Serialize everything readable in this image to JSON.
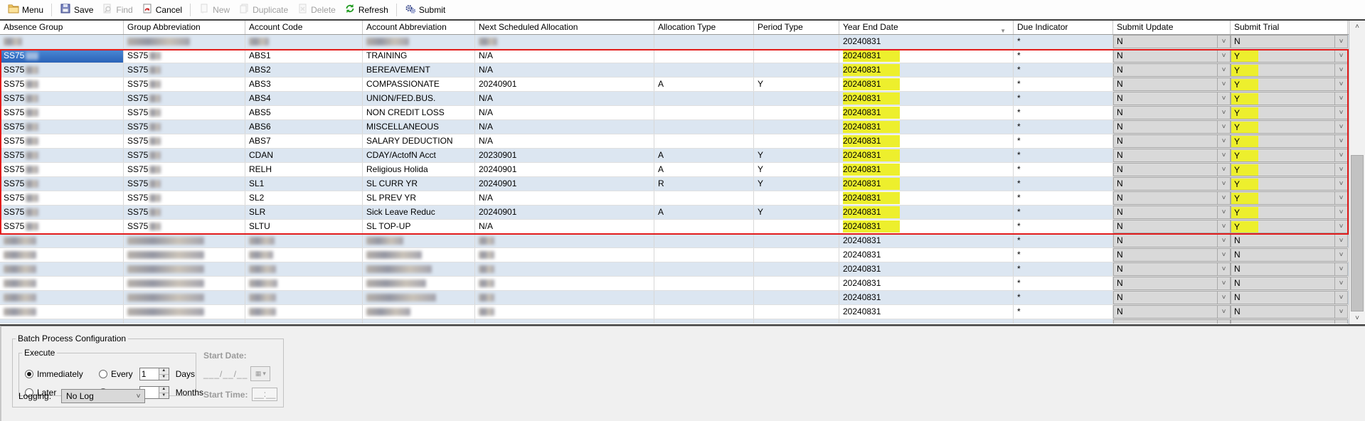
{
  "toolbar": {
    "items": [
      {
        "label": "Menu",
        "icon": "menu-folder-icon",
        "enabled": true,
        "separator_after": true
      },
      {
        "label": "Save",
        "icon": "save-icon",
        "enabled": true,
        "separator_after": false
      },
      {
        "label": "Find",
        "icon": "find-icon",
        "enabled": false,
        "separator_after": false
      },
      {
        "label": "Cancel",
        "icon": "cancel-icon",
        "enabled": true,
        "separator_after": true
      },
      {
        "label": "New",
        "icon": "new-icon",
        "enabled": false,
        "separator_after": false
      },
      {
        "label": "Duplicate",
        "icon": "duplicate-icon",
        "enabled": false,
        "separator_after": false
      },
      {
        "label": "Delete",
        "icon": "delete-icon",
        "enabled": false,
        "separator_after": false
      },
      {
        "label": "Refresh",
        "icon": "refresh-icon",
        "enabled": true,
        "separator_after": true
      },
      {
        "label": "Submit",
        "icon": "submit-icon",
        "enabled": true,
        "separator_after": false
      }
    ]
  },
  "grid": {
    "columns": [
      {
        "label": "Absence Group",
        "key": "ag"
      },
      {
        "label": "Group Abbreviation",
        "key": "ga"
      },
      {
        "label": "Account Code",
        "key": "ac"
      },
      {
        "label": "Account Abbreviation",
        "key": "aa"
      },
      {
        "label": "Next Scheduled Allocation",
        "key": "nsa"
      },
      {
        "label": "Allocation Type",
        "key": "at"
      },
      {
        "label": "Period Type",
        "key": "pt"
      },
      {
        "label": "Year End Date",
        "key": "yed",
        "sorted": "desc"
      },
      {
        "label": "Due Indicator",
        "key": "due"
      },
      {
        "label": "Submit Update",
        "key": "su",
        "type": "dropdown"
      },
      {
        "label": "Submit Trial",
        "key": "st",
        "type": "dropdown"
      }
    ],
    "rows": [
      {
        "redacted": true,
        "blur": {
          "ag": 26,
          "ga": 88,
          "ac": 28,
          "aa": 60,
          "nsa": 26
        },
        "yed": "20240831",
        "due": "*",
        "su": "N",
        "st": "N"
      },
      {
        "ag": "SS75",
        "ag_blur": 18,
        "ga": "SS75",
        "ga_blur": 16,
        "ac": "ABS1",
        "aa": "TRAINING",
        "nsa": "N/A",
        "at": "",
        "pt": "",
        "yed": "20240831",
        "yed_hl": true,
        "due": "*",
        "su": "N",
        "st": "Y",
        "st_hl": true,
        "selected": true
      },
      {
        "ag": "SS75",
        "ag_blur": 18,
        "ga": "SS75",
        "ga_blur": 16,
        "ac": "ABS2",
        "aa": "BEREAVEMENT",
        "nsa": "N/A",
        "at": "",
        "pt": "",
        "yed": "20240831",
        "yed_hl": true,
        "due": "*",
        "su": "N",
        "st": "Y",
        "st_hl": true
      },
      {
        "ag": "SS75",
        "ag_blur": 18,
        "ga": "SS75",
        "ga_blur": 16,
        "ac": "ABS3",
        "aa": "COMPASSIONATE",
        "nsa": "20240901",
        "at": "A",
        "pt": "Y",
        "yed": "20240831",
        "yed_hl": true,
        "due": "*",
        "su": "N",
        "st": "Y",
        "st_hl": true
      },
      {
        "ag": "SS75",
        "ag_blur": 18,
        "ga": "SS75",
        "ga_blur": 16,
        "ac": "ABS4",
        "aa": "UNION/FED.BUS.",
        "nsa": "N/A",
        "at": "",
        "pt": "",
        "yed": "20240831",
        "yed_hl": true,
        "due": "*",
        "su": "N",
        "st": "Y",
        "st_hl": true
      },
      {
        "ag": "SS75",
        "ag_blur": 18,
        "ga": "SS75",
        "ga_blur": 16,
        "ac": "ABS5",
        "aa": "NON CREDIT LOSS",
        "nsa": "N/A",
        "at": "",
        "pt": "",
        "yed": "20240831",
        "yed_hl": true,
        "due": "*",
        "su": "N",
        "st": "Y",
        "st_hl": true
      },
      {
        "ag": "SS75",
        "ag_blur": 18,
        "ga": "SS75",
        "ga_blur": 16,
        "ac": "ABS6",
        "aa": "MISCELLANEOUS",
        "nsa": "N/A",
        "at": "",
        "pt": "",
        "yed": "20240831",
        "yed_hl": true,
        "due": "*",
        "su": "N",
        "st": "Y",
        "st_hl": true
      },
      {
        "ag": "SS75",
        "ag_blur": 18,
        "ga": "SS75",
        "ga_blur": 16,
        "ac": "ABS7",
        "aa": "SALARY DEDUCTION",
        "nsa": "N/A",
        "at": "",
        "pt": "",
        "yed": "20240831",
        "yed_hl": true,
        "due": "*",
        "su": "N",
        "st": "Y",
        "st_hl": true
      },
      {
        "ag": "SS75",
        "ag_blur": 18,
        "ga": "SS75",
        "ga_blur": 16,
        "ac": "CDAN",
        "aa": "CDAY/ActofN Acct",
        "nsa": "20230901",
        "at": "A",
        "pt": "Y",
        "yed": "20240831",
        "yed_hl": true,
        "due": "*",
        "su": "N",
        "st": "Y",
        "st_hl": true
      },
      {
        "ag": "SS75",
        "ag_blur": 18,
        "ga": "SS75",
        "ga_blur": 16,
        "ac": "RELH",
        "aa": "Religious Holida",
        "nsa": "20240901",
        "at": "A",
        "pt": "Y",
        "yed": "20240831",
        "yed_hl": true,
        "due": "*",
        "su": "N",
        "st": "Y",
        "st_hl": true
      },
      {
        "ag": "SS75",
        "ag_blur": 18,
        "ga": "SS75",
        "ga_blur": 16,
        "ac": "SL1",
        "aa": "SL CURR YR",
        "nsa": "20240901",
        "at": "R",
        "pt": "Y",
        "yed": "20240831",
        "yed_hl": true,
        "due": "*",
        "su": "N",
        "st": "Y",
        "st_hl": true
      },
      {
        "ag": "SS75",
        "ag_blur": 18,
        "ga": "SS75",
        "ga_blur": 16,
        "ac": "SL2",
        "aa": "SL PREV YR",
        "nsa": "N/A",
        "at": "",
        "pt": "",
        "yed": "20240831",
        "yed_hl": true,
        "due": "*",
        "su": "N",
        "st": "Y",
        "st_hl": true
      },
      {
        "ag": "SS75",
        "ag_blur": 18,
        "ga": "SS75",
        "ga_blur": 16,
        "ac": "SLR",
        "aa": "Sick Leave Reduc",
        "nsa": "20240901",
        "at": "A",
        "pt": "Y",
        "yed": "20240831",
        "yed_hl": true,
        "due": "*",
        "su": "N",
        "st": "Y",
        "st_hl": true
      },
      {
        "ag": "SS75",
        "ag_blur": 18,
        "ga": "SS75",
        "ga_blur": 16,
        "ac": "SLTU",
        "aa": "SL TOP-UP",
        "nsa": "N/A",
        "at": "",
        "pt": "",
        "yed": "20240831",
        "yed_hl": true,
        "due": "*",
        "su": "N",
        "st": "Y",
        "st_hl": true
      },
      {
        "redacted": true,
        "blur": {
          "ag": 46,
          "ga": 108,
          "ac": 36,
          "aa": 52,
          "nsa": 22
        },
        "yed": "20240831",
        "due": "*",
        "su": "N",
        "st": "N"
      },
      {
        "redacted": true,
        "blur": {
          "ag": 46,
          "ga": 108,
          "ac": 34,
          "aa": 78,
          "nsa": 22
        },
        "yed": "20240831",
        "due": "*",
        "su": "N",
        "st": "N"
      },
      {
        "redacted": true,
        "blur": {
          "ag": 46,
          "ga": 108,
          "ac": 38,
          "aa": 92,
          "nsa": 22
        },
        "yed": "20240831",
        "due": "*",
        "su": "N",
        "st": "N"
      },
      {
        "redacted": true,
        "blur": {
          "ag": 46,
          "ga": 108,
          "ac": 40,
          "aa": 84,
          "nsa": 22
        },
        "yed": "20240831",
        "due": "*",
        "su": "N",
        "st": "N"
      },
      {
        "redacted": true,
        "blur": {
          "ag": 46,
          "ga": 108,
          "ac": 38,
          "aa": 98,
          "nsa": 22
        },
        "yed": "20240831",
        "due": "*",
        "su": "N",
        "st": "N"
      },
      {
        "redacted": true,
        "blur": {
          "ag": 46,
          "ga": 108,
          "ac": 38,
          "aa": 62,
          "nsa": 22
        },
        "yed": "20240831",
        "due": "*",
        "su": "N",
        "st": "N"
      },
      {
        "partial": true,
        "su": "",
        "st": ""
      }
    ]
  },
  "batch": {
    "title": "Batch Process Configuration",
    "execute": {
      "title": "Execute",
      "options": [
        {
          "label": "Immediately",
          "selected": true
        },
        {
          "label": "Every",
          "selected": false,
          "value": "1",
          "unit": "Days"
        },
        {
          "label": "Later",
          "selected": false
        },
        {
          "label": "Every",
          "selected": false,
          "value": "",
          "unit": "Months"
        }
      ]
    },
    "start_date": {
      "label": "Start Date:",
      "value": "___/__/__",
      "enabled": false
    },
    "start_time": {
      "label": "Start Time:",
      "value": "__:__",
      "enabled": false
    },
    "logging": {
      "label": "Logging:",
      "value": "No Log"
    }
  },
  "colors": {
    "selection": "#2f6fc9",
    "highlight_yellow": "#edef2d",
    "red_box": "#e21c1c",
    "zebra_blue": "#dce6f1"
  }
}
